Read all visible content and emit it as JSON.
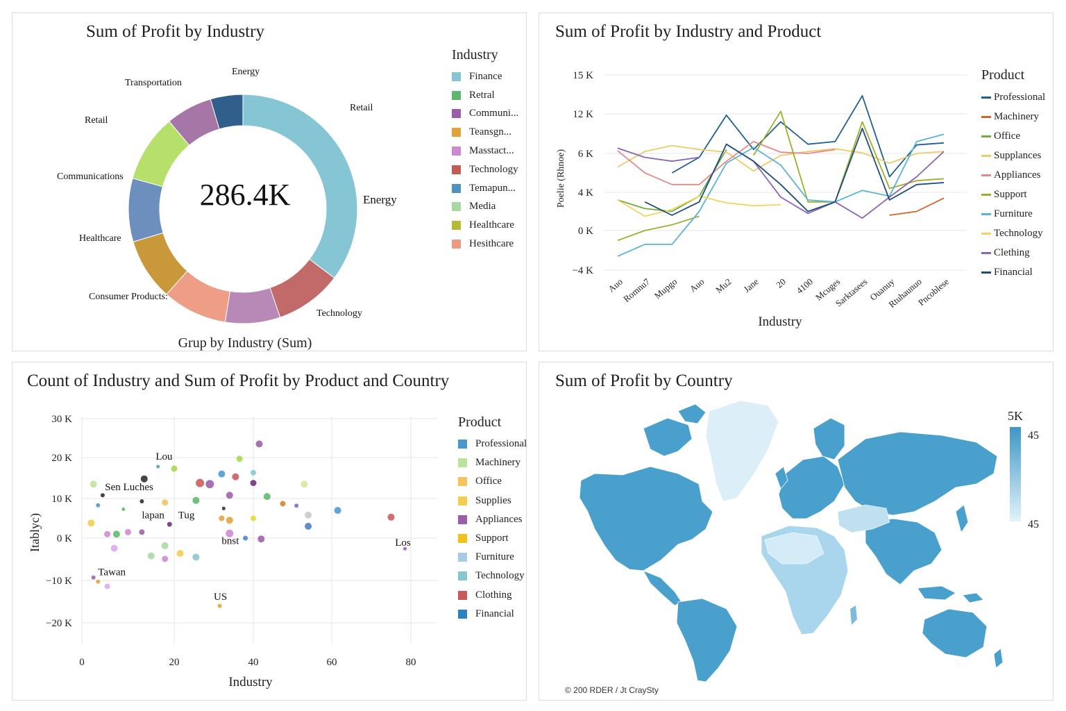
{
  "palette": [
    "#86c6d4",
    "#5cb86a",
    "#9b5da8",
    "#e3a33a",
    "#cf87cf",
    "#c45c56",
    "#4f93bf",
    "#a6d8a2",
    "#b8b838",
    "#ee9a80"
  ],
  "donut": {
    "title": "Sum of Profit by Industry",
    "center_value": "286.4K",
    "footer": "Grup by Industry (Sum)",
    "legend_title": "Industry",
    "legend": [
      {
        "label": "Finance",
        "color": "#86c6d4"
      },
      {
        "label": "Retral",
        "color": "#5cb86a"
      },
      {
        "label": "Communi...",
        "color": "#9b5da8"
      },
      {
        "label": "Teansgn...",
        "color": "#e3a33a"
      },
      {
        "label": "Masstact...",
        "color": "#cf87cf"
      },
      {
        "label": "Technology",
        "color": "#c45c56"
      },
      {
        "label": "Temapun...",
        "color": "#4f93bf"
      },
      {
        "label": "Media",
        "color": "#a6d8a2"
      },
      {
        "label": "Healthcare",
        "color": "#b8b838"
      },
      {
        "label": "Hesithcare",
        "color": "#ee9a80"
      }
    ]
  },
  "line": {
    "title": "Sum of Profit by Industry and Product",
    "legend_title": "Product",
    "legend": [
      {
        "label": "Professional",
        "color": "#1f5f8e"
      },
      {
        "label": "Machinery",
        "color": "#d4622a"
      },
      {
        "label": "Office",
        "color": "#6fae43"
      },
      {
        "label": "Supplances",
        "color": "#eccb6a"
      },
      {
        "label": "Appliances",
        "color": "#e58a8a"
      },
      {
        "label": "Support",
        "color": "#9fae2a"
      },
      {
        "label": "Furniture",
        "color": "#5ab3d6"
      },
      {
        "label": "Technology",
        "color": "#f4d35e"
      },
      {
        "label": "Clething",
        "color": "#8b64b4"
      },
      {
        "label": "Financial",
        "color": "#1c4c7c"
      }
    ]
  },
  "bubble": {
    "title": "Count of Industry and Sum of Profit by Product and Country",
    "legend_title": "Product",
    "legend": [
      {
        "label": "Professional",
        "color": "#4a98cf"
      },
      {
        "label": "Machinery",
        "color": "#bde39a"
      },
      {
        "label": "Office",
        "color": "#f5c35e"
      },
      {
        "label": "Supplies",
        "color": "#f2cd4e"
      },
      {
        "label": "Appliances",
        "color": "#9b5fa9"
      },
      {
        "label": "Support",
        "color": "#f0c21a"
      },
      {
        "label": "Furniture",
        "color": "#a8cbe4"
      },
      {
        "label": "Technology",
        "color": "#84c7cf"
      },
      {
        "label": "Clothing",
        "color": "#c95a5a"
      },
      {
        "label": "Financial",
        "color": "#2a83bd"
      }
    ]
  },
  "map": {
    "title": "Sum of Profit by Country",
    "legend_top_label": "5K",
    "legend_high": "45",
    "legend_low": "45",
    "footer": "© 200 RDER / Jt CraySty",
    "high_color": "#3d97c7",
    "low_color": "#e3f3fb"
  },
  "chart_data": [
    {
      "type": "pie",
      "title": "Sum of Profit by Industry",
      "donut": true,
      "center_label": "286.4K",
      "slices": [
        {
          "label": "Retail",
          "value": 35.5,
          "color": "#86c6d4"
        },
        {
          "label": "Technology",
          "value": 9.5,
          "color": "#c26a6a"
        },
        {
          "label": "Energy",
          "value": 7.8,
          "color": "#b888b6"
        },
        {
          "label": "Consumer Products:",
          "value": 9.2,
          "color": "#ee9d86"
        },
        {
          "label": "Healthcare",
          "value": 8.8,
          "color": "#c8983a"
        },
        {
          "label": "Communications",
          "value": 9.0,
          "color": "#6c8fbd"
        },
        {
          "label": "Retail",
          "value": 9.6,
          "color": "#b6df6c"
        },
        {
          "label": "Transportation",
          "value": 6.6,
          "color": "#a676a6"
        },
        {
          "label": "Energy",
          "value": 4.6,
          "color": "#2f5f8a"
        }
      ],
      "side_labels": [
        {
          "text": "Energy",
          "near": "right"
        }
      ]
    },
    {
      "type": "line",
      "title": "Sum of Profit by Industry and Product",
      "xlabel": "Industry",
      "ylabel": "Poelie (Rhnoe)",
      "categories": [
        "Auo",
        "Romnu7",
        "Mupgo",
        "Auo",
        "Mu2",
        "Jane",
        "20",
        "4100",
        "Mcuges",
        "Sarktasees",
        "Ouanuy",
        "Rtuhaunuo",
        "Pncoblese"
      ],
      "yticks": [
        "15 K",
        "12 K",
        "6 K",
        "4 K",
        "0 K",
        "−4 K"
      ],
      "series": [
        {
          "name": "Professional",
          "color": "#1f5f8e",
          "values": [
            null,
            null,
            5.0,
            5.8,
            11.8,
            6.6,
            10.8,
            7.4,
            7.8,
            13.4,
            4.8,
            7.3,
            7.6
          ]
        },
        {
          "name": "Machinery",
          "color": "#d4622a",
          "values": [
            null,
            null,
            null,
            null,
            null,
            null,
            null,
            null,
            null,
            null,
            1.6,
            2.0,
            3.4
          ]
        },
        {
          "name": "Office",
          "color": "#6fae43",
          "values": [
            3.2,
            2.3,
            2.0,
            3.6,
            6.6,
            null,
            null,
            null,
            null,
            null,
            null,
            null,
            null
          ]
        },
        {
          "name": "Supplances",
          "color": "#eccb6a",
          "values": [
            5.3,
            6.3,
            7.2,
            6.6,
            6.2,
            5.1,
            5.9,
            6.3,
            6.7,
            6.1,
            5.5,
            6.0,
            6.3
          ]
        },
        {
          "name": "Appliances",
          "color": "#e58a8a",
          "values": [
            6.4,
            5.0,
            4.4,
            4.4,
            5.6,
            7.8,
            6.2,
            6.0,
            6.6,
            null,
            null,
            null,
            null
          ]
        },
        {
          "name": "Support",
          "color": "#9fae2a",
          "values": [
            -1.0,
            0.0,
            0.6,
            1.5,
            null,
            5.9,
            12.2,
            3.0,
            3.0,
            10.8,
            4.2,
            4.6,
            4.7
          ]
        },
        {
          "name": "Furniture",
          "color": "#5ab3d6",
          "values": [
            -2.6,
            -1.4,
            -1.4,
            2.0,
            5.5,
            6.9,
            5.4,
            3.2,
            3.0,
            4.1,
            3.6,
            7.8,
            8.9
          ]
        },
        {
          "name": "Technology",
          "color": "#f4d35e",
          "values": [
            3.2,
            1.5,
            2.2,
            3.6,
            2.9,
            2.6,
            2.7,
            null,
            null,
            null,
            null,
            null,
            null
          ]
        },
        {
          "name": "Clething",
          "color": "#8b64b4",
          "values": [
            6.8,
            5.8,
            5.6,
            5.8,
            null,
            5.6,
            3.5,
            1.8,
            3.0,
            1.3,
            3.5,
            4.8,
            6.3
          ]
        },
        {
          "name": "Financial",
          "color": "#1c4c7c",
          "values": [
            null,
            3.0,
            1.6,
            3.0,
            7.4,
            5.6,
            4.4,
            2.0,
            3.0,
            9.8,
            3.2,
            4.4,
            4.5
          ]
        }
      ]
    },
    {
      "type": "scatter",
      "title": "Count of Industry and Sum of Profit by Product and Country",
      "xlabel": "Industry",
      "ylabel": "Itablyc)",
      "xlim": [
        0,
        85
      ],
      "ylim": [
        -23,
        30
      ],
      "xticks": [
        "0",
        "20",
        "40",
        "60",
        "80"
      ],
      "yticks": [
        "30 K",
        "20 K",
        "10 K",
        "0 K",
        "−10 K",
        "−20 K"
      ],
      "annotations": [
        {
          "text": "Lou",
          "x": 16,
          "y": 19.5
        },
        {
          "text": "Sen Luches",
          "x": 5,
          "y": 12
        },
        {
          "text": "lapan",
          "x": 13,
          "y": 5
        },
        {
          "text": "Tug",
          "x": 21,
          "y": 5
        },
        {
          "text": "bnst",
          "x": 32,
          "y": -1.4
        },
        {
          "text": "Tawan",
          "x": 3.5,
          "y": -8.8
        },
        {
          "text": "US",
          "x": 30,
          "y": -14.6
        },
        {
          "text": "Los",
          "x": 76,
          "y": -1.8
        }
      ],
      "points": [
        {
          "x": 2.5,
          "y": 13.5,
          "c": "#bde39a",
          "r": 5
        },
        {
          "x": 4.5,
          "y": 10.8,
          "c": "#2b2b2b",
          "r": 3
        },
        {
          "x": 3.5,
          "y": 8.3,
          "c": "#4a98cf",
          "r": 3
        },
        {
          "x": 2,
          "y": 3.8,
          "c": "#f2cd4e",
          "r": 5
        },
        {
          "x": 5.5,
          "y": 1.0,
          "c": "#cf87cf",
          "r": 4.5
        },
        {
          "x": 7.5,
          "y": 1.0,
          "c": "#5cb86a",
          "r": 5
        },
        {
          "x": 10,
          "y": 1.5,
          "c": "#cf87cf",
          "r": 4.5
        },
        {
          "x": 13,
          "y": 1.5,
          "c": "#9b5fa9",
          "r": 4
        },
        {
          "x": 9,
          "y": 7.3,
          "c": "#5cb86a",
          "r": 2.5
        },
        {
          "x": 13,
          "y": 9.3,
          "c": "#2b2b2b",
          "r": 3
        },
        {
          "x": 13.5,
          "y": 14.8,
          "c": "#2b2b2b",
          "r": 5
        },
        {
          "x": 16.5,
          "y": 17.8,
          "c": "#4a98cf",
          "r": 2.5
        },
        {
          "x": 18,
          "y": 9.0,
          "c": "#f5c35e",
          "r": 4.5
        },
        {
          "x": 19,
          "y": 3.5,
          "c": "#6b2c7a",
          "r": 3.5
        },
        {
          "x": 20,
          "y": 17.3,
          "c": "#a6d84a",
          "r": 4.5
        },
        {
          "x": 7,
          "y": -2.4,
          "c": "#d9a7f2",
          "r": 5
        },
        {
          "x": 15,
          "y": -4.2,
          "c": "#a6d8a2",
          "r": 5
        },
        {
          "x": 18,
          "y": -1.8,
          "c": "#a6d8a2",
          "r": 5
        },
        {
          "x": 18,
          "y": -4.9,
          "c": "#cf87cf",
          "r": 4.5
        },
        {
          "x": 21.5,
          "y": -3.6,
          "c": "#f2cd4e",
          "r": 5
        },
        {
          "x": 25.5,
          "y": -4.5,
          "c": "#84c7cf",
          "r": 5
        },
        {
          "x": 26.5,
          "y": 13.8,
          "c": "#c95a5a",
          "r": 6
        },
        {
          "x": 25.5,
          "y": 9.5,
          "c": "#5cb86a",
          "r": 5
        },
        {
          "x": 29,
          "y": 13.5,
          "c": "#9b5fa9",
          "r": 6
        },
        {
          "x": 32,
          "y": 16.0,
          "c": "#4a98cf",
          "r": 5
        },
        {
          "x": 32.5,
          "y": 7.5,
          "c": "#2b2b2b",
          "r": 2.5
        },
        {
          "x": 32,
          "y": 5.0,
          "c": "#e3a33a",
          "r": 4
        },
        {
          "x": 34,
          "y": 10.8,
          "c": "#9b5fa9",
          "r": 5
        },
        {
          "x": 34,
          "y": 4.5,
          "c": "#e3a33a",
          "r": 5
        },
        {
          "x": 34,
          "y": 1.2,
          "c": "#cf87cf",
          "r": 5.5
        },
        {
          "x": 35.5,
          "y": 15.3,
          "c": "#c95a5a",
          "r": 5
        },
        {
          "x": 36.5,
          "y": 19.7,
          "c": "#a6d84a",
          "r": 4.5
        },
        {
          "x": 38,
          "y": 0.0,
          "c": "#4a7fcf",
          "r": 3.5
        },
        {
          "x": 40,
          "y": 16.3,
          "c": "#84c7cf",
          "r": 4
        },
        {
          "x": 40,
          "y": 13.8,
          "c": "#6b2c7a",
          "r": 4.5
        },
        {
          "x": 40,
          "y": 5.0,
          "c": "#e0dc30",
          "r": 4
        },
        {
          "x": 41.5,
          "y": 23.5,
          "c": "#9b5fa9",
          "r": 5
        },
        {
          "x": 42,
          "y": -0.2,
          "c": "#9b5fa9",
          "r": 5
        },
        {
          "x": 43.5,
          "y": 10.5,
          "c": "#5cb86a",
          "r": 5
        },
        {
          "x": 47.5,
          "y": 8.7,
          "c": "#d4822a",
          "r": 4
        },
        {
          "x": 51,
          "y": 8.2,
          "c": "#7a6ac8",
          "r": 3
        },
        {
          "x": 53,
          "y": 13.5,
          "c": "#d5e69a",
          "r": 5
        },
        {
          "x": 54,
          "y": 5.8,
          "c": "#c8c8c8",
          "r": 5
        },
        {
          "x": 54,
          "y": 3.0,
          "c": "#4a7fbf",
          "r": 5
        },
        {
          "x": 61.5,
          "y": 7.0,
          "c": "#4a98cf",
          "r": 5
        },
        {
          "x": 75,
          "y": 5.3,
          "c": "#c95a5a",
          "r": 5
        },
        {
          "x": 78.5,
          "y": -2.5,
          "c": "#9b5fa9",
          "r": 2.5
        },
        {
          "x": 2.5,
          "y": -9.3,
          "c": "#9b5fa9",
          "r": 3
        },
        {
          "x": 3.5,
          "y": -10.3,
          "c": "#e3a33a",
          "r": 3
        },
        {
          "x": 5.5,
          "y": -11.4,
          "c": "#d9a7f2",
          "r": 4
        },
        {
          "x": 31.5,
          "y": -16.0,
          "c": "#e3a33a",
          "r": 3
        }
      ]
    }
  ]
}
